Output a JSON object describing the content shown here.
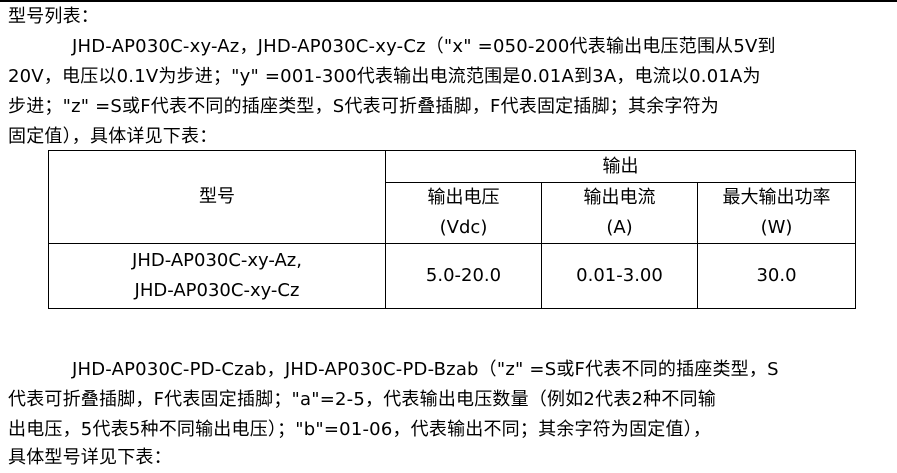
{
  "heading": "型号列表：",
  "para1": [
    "JHD-AP030C-xy-Az，JHD-AP030C-xy-Cz（\"x\" =050-200代表输出电压范围从5V到",
    "20V，电压以0.1V为步进；\"y\" =001-300代表输出电流范围是0.01A到3A，电流以0.01A为",
    "步进；\"z\" =S或F代表不同的插座类型，S代表可折叠插脚，F代表固定插脚；其余字符为",
    "固定值），具体详见下表："
  ],
  "table": {
    "model_header": "型号",
    "output_header": "输出",
    "sub_headers": [
      [
        "输出电压",
        "(Vdc)"
      ],
      [
        "输出电流",
        "(A)"
      ],
      [
        "最大输出功率",
        "(W)"
      ]
    ],
    "rows": [
      {
        "model": [
          "JHD-AP030C-xy-Az,",
          "JHD-AP030C-xy-Cz"
        ],
        "voltage": "5.0-20.0",
        "current": "0.01-3.00",
        "power": "30.0"
      }
    ]
  },
  "para2": [
    "JHD-AP030C-PD-Czab，JHD-AP030C-PD-Bzab（\"z\" =S或F代表不同的插座类型，S",
    "代表可折叠插脚，F代表固定插脚；\"a\"=2-5，代表输出电压数量（例如2代表2种不同输",
    "出电压，5代表5种不同输出电压）；\"b\"=01-06，代表输出不同；其余字符为固定值），",
    "具体型号详见下表："
  ]
}
